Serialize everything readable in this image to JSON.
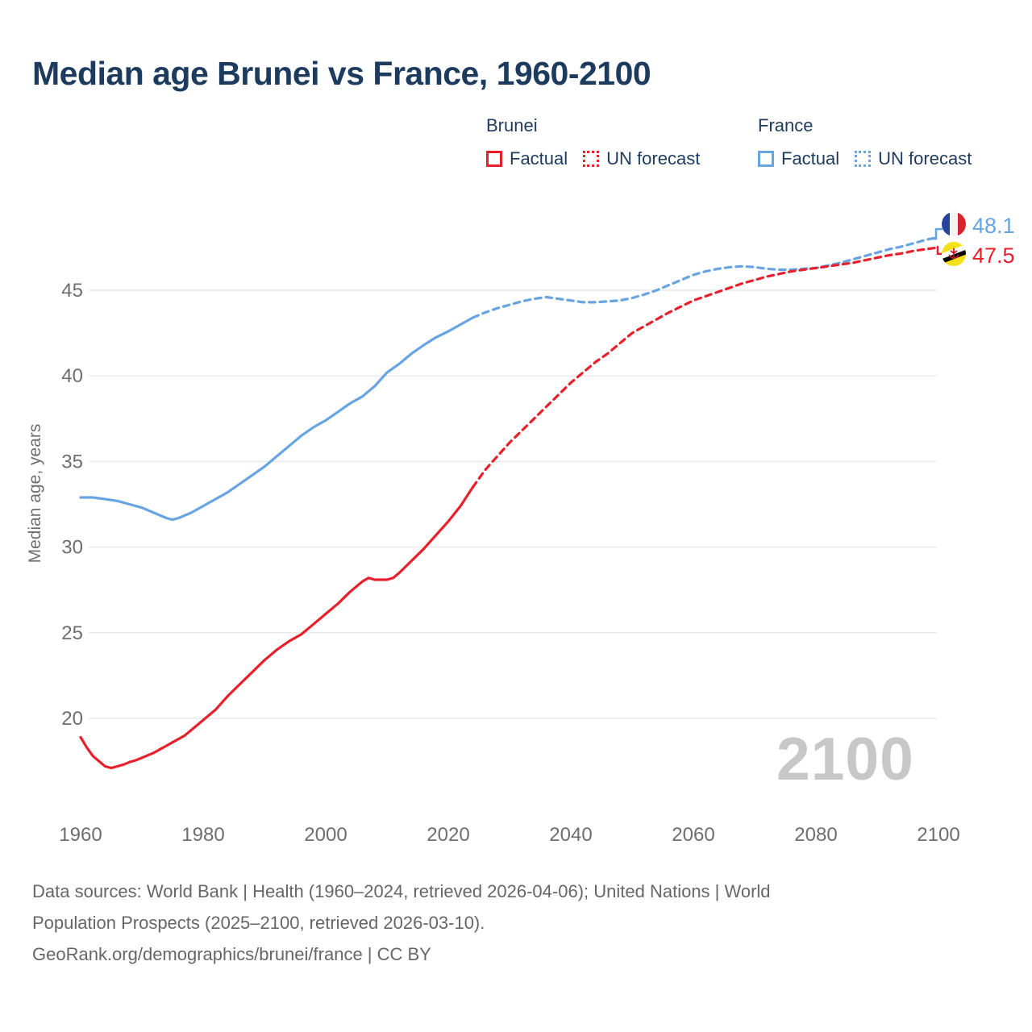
{
  "title": "Median age Brunei vs France, 1960-2100",
  "legend": {
    "groups": [
      {
        "name": "Brunei",
        "color": "#e8202c",
        "items": [
          {
            "label": "Factual",
            "style": "solid"
          },
          {
            "label": "UN forecast",
            "style": "dotted"
          }
        ]
      },
      {
        "name": "France",
        "color": "#68a4e2",
        "items": [
          {
            "label": "Factual",
            "style": "solid"
          },
          {
            "label": "UN forecast",
            "style": "dotted"
          }
        ]
      }
    ]
  },
  "chart_data": {
    "type": "line",
    "title": "Median age Brunei vs France, 1960-2100",
    "xlabel": "",
    "ylabel": "Median age, years",
    "x_ticks": [
      1960,
      1980,
      2000,
      2020,
      2040,
      2060,
      2080,
      2100
    ],
    "y_ticks": [
      20,
      25,
      30,
      35,
      40,
      45
    ],
    "xlim": [
      1960,
      2100
    ],
    "ylim": [
      16,
      49
    ],
    "grid": "horizontal",
    "legend_position": "top",
    "watermark": "2100",
    "series": [
      {
        "name": "France factual",
        "country": "France",
        "segment": "factual",
        "color": "#68a4e2",
        "dashed": false,
        "points": [
          [
            1960,
            32.9
          ],
          [
            1962,
            32.9
          ],
          [
            1964,
            32.8
          ],
          [
            1966,
            32.7
          ],
          [
            1968,
            32.5
          ],
          [
            1970,
            32.3
          ],
          [
            1972,
            32.0
          ],
          [
            1974,
            31.7
          ],
          [
            1975,
            31.6
          ],
          [
            1976,
            31.7
          ],
          [
            1978,
            32.0
          ],
          [
            1980,
            32.4
          ],
          [
            1982,
            32.8
          ],
          [
            1984,
            33.2
          ],
          [
            1986,
            33.7
          ],
          [
            1988,
            34.2
          ],
          [
            1990,
            34.7
          ],
          [
            1992,
            35.3
          ],
          [
            1994,
            35.9
          ],
          [
            1996,
            36.5
          ],
          [
            1998,
            37.0
          ],
          [
            2000,
            37.4
          ],
          [
            2002,
            37.9
          ],
          [
            2004,
            38.4
          ],
          [
            2006,
            38.8
          ],
          [
            2008,
            39.4
          ],
          [
            2010,
            40.2
          ],
          [
            2012,
            40.7
          ],
          [
            2014,
            41.3
          ],
          [
            2016,
            41.8
          ],
          [
            2018,
            42.25
          ],
          [
            2020,
            42.6
          ],
          [
            2022,
            43.0
          ],
          [
            2024,
            43.4
          ]
        ]
      },
      {
        "name": "France UN forecast",
        "country": "France",
        "segment": "forecast",
        "color": "#68a4e2",
        "dashed": true,
        "points": [
          [
            2024,
            43.4
          ],
          [
            2026,
            43.7
          ],
          [
            2028,
            43.95
          ],
          [
            2030,
            44.15
          ],
          [
            2032,
            44.35
          ],
          [
            2034,
            44.5
          ],
          [
            2036,
            44.6
          ],
          [
            2038,
            44.5
          ],
          [
            2040,
            44.4
          ],
          [
            2042,
            44.3
          ],
          [
            2044,
            44.3
          ],
          [
            2046,
            44.35
          ],
          [
            2048,
            44.4
          ],
          [
            2050,
            44.55
          ],
          [
            2052,
            44.75
          ],
          [
            2054,
            45.0
          ],
          [
            2056,
            45.3
          ],
          [
            2058,
            45.6
          ],
          [
            2060,
            45.9
          ],
          [
            2062,
            46.1
          ],
          [
            2064,
            46.25
          ],
          [
            2066,
            46.35
          ],
          [
            2068,
            46.4
          ],
          [
            2070,
            46.35
          ],
          [
            2072,
            46.25
          ],
          [
            2074,
            46.2
          ],
          [
            2076,
            46.2
          ],
          [
            2078,
            46.25
          ],
          [
            2080,
            46.3
          ],
          [
            2082,
            46.45
          ],
          [
            2084,
            46.6
          ],
          [
            2086,
            46.8
          ],
          [
            2088,
            47.0
          ],
          [
            2090,
            47.2
          ],
          [
            2092,
            47.4
          ],
          [
            2094,
            47.55
          ],
          [
            2096,
            47.75
          ],
          [
            2098,
            47.95
          ],
          [
            2100,
            48.1
          ]
        ]
      },
      {
        "name": "Brunei factual",
        "country": "Brunei",
        "segment": "factual",
        "color": "#e8202c",
        "dashed": false,
        "points": [
          [
            1960,
            18.9
          ],
          [
            1961,
            18.3
          ],
          [
            1962,
            17.8
          ],
          [
            1963,
            17.5
          ],
          [
            1964,
            17.2
          ],
          [
            1965,
            17.1
          ],
          [
            1966,
            17.2
          ],
          [
            1967,
            17.3
          ],
          [
            1968,
            17.45
          ],
          [
            1969,
            17.55
          ],
          [
            1970,
            17.7
          ],
          [
            1971,
            17.85
          ],
          [
            1972,
            18.0
          ],
          [
            1973,
            18.2
          ],
          [
            1974,
            18.4
          ],
          [
            1975,
            18.6
          ],
          [
            1976,
            18.8
          ],
          [
            1977,
            19.0
          ],
          [
            1978,
            19.3
          ],
          [
            1979,
            19.6
          ],
          [
            1980,
            19.9
          ],
          [
            1982,
            20.5
          ],
          [
            1984,
            21.3
          ],
          [
            1986,
            22.0
          ],
          [
            1988,
            22.7
          ],
          [
            1990,
            23.4
          ],
          [
            1992,
            24.0
          ],
          [
            1994,
            24.5
          ],
          [
            1996,
            24.9
          ],
          [
            1998,
            25.5
          ],
          [
            2000,
            26.1
          ],
          [
            2002,
            26.7
          ],
          [
            2004,
            27.4
          ],
          [
            2006,
            28.0
          ],
          [
            2007,
            28.2
          ],
          [
            2008,
            28.1
          ],
          [
            2009,
            28.1
          ],
          [
            2010,
            28.1
          ],
          [
            2011,
            28.2
          ],
          [
            2012,
            28.5
          ],
          [
            2014,
            29.2
          ],
          [
            2016,
            29.9
          ],
          [
            2018,
            30.7
          ],
          [
            2020,
            31.5
          ],
          [
            2022,
            32.4
          ],
          [
            2024,
            33.5
          ]
        ]
      },
      {
        "name": "Brunei UN forecast",
        "country": "Brunei",
        "segment": "forecast",
        "color": "#e8202c",
        "dashed": true,
        "points": [
          [
            2024,
            33.5
          ],
          [
            2026,
            34.5
          ],
          [
            2028,
            35.3
          ],
          [
            2030,
            36.1
          ],
          [
            2032,
            36.8
          ],
          [
            2034,
            37.5
          ],
          [
            2036,
            38.2
          ],
          [
            2038,
            38.9
          ],
          [
            2040,
            39.6
          ],
          [
            2042,
            40.2
          ],
          [
            2044,
            40.8
          ],
          [
            2046,
            41.3
          ],
          [
            2048,
            41.9
          ],
          [
            2050,
            42.5
          ],
          [
            2052,
            42.9
          ],
          [
            2054,
            43.3
          ],
          [
            2056,
            43.7
          ],
          [
            2058,
            44.05
          ],
          [
            2060,
            44.4
          ],
          [
            2062,
            44.65
          ],
          [
            2064,
            44.9
          ],
          [
            2066,
            45.15
          ],
          [
            2068,
            45.4
          ],
          [
            2070,
            45.6
          ],
          [
            2072,
            45.8
          ],
          [
            2074,
            45.95
          ],
          [
            2076,
            46.1
          ],
          [
            2078,
            46.2
          ],
          [
            2080,
            46.3
          ],
          [
            2082,
            46.4
          ],
          [
            2084,
            46.5
          ],
          [
            2086,
            46.6
          ],
          [
            2088,
            46.75
          ],
          [
            2090,
            46.9
          ],
          [
            2092,
            47.05
          ],
          [
            2094,
            47.15
          ],
          [
            2096,
            47.3
          ],
          [
            2098,
            47.4
          ],
          [
            2100,
            47.5
          ]
        ]
      }
    ],
    "end_labels": [
      {
        "country": "France",
        "value": "48.1",
        "color": "#68a4e2",
        "flag": "france-flag"
      },
      {
        "country": "Brunei",
        "value": "47.5",
        "color": "#e8202c",
        "flag": "brunei-flag"
      }
    ]
  },
  "footer": {
    "lines": [
      "Data sources: World Bank | Health (1960–2024, retrieved 2026-04-06); United Nations | World",
      "Population Prospects (2025–2100, retrieved 2026-03-10).",
      "GeoRank.org/demographics/brunei/france | CC BY"
    ]
  }
}
